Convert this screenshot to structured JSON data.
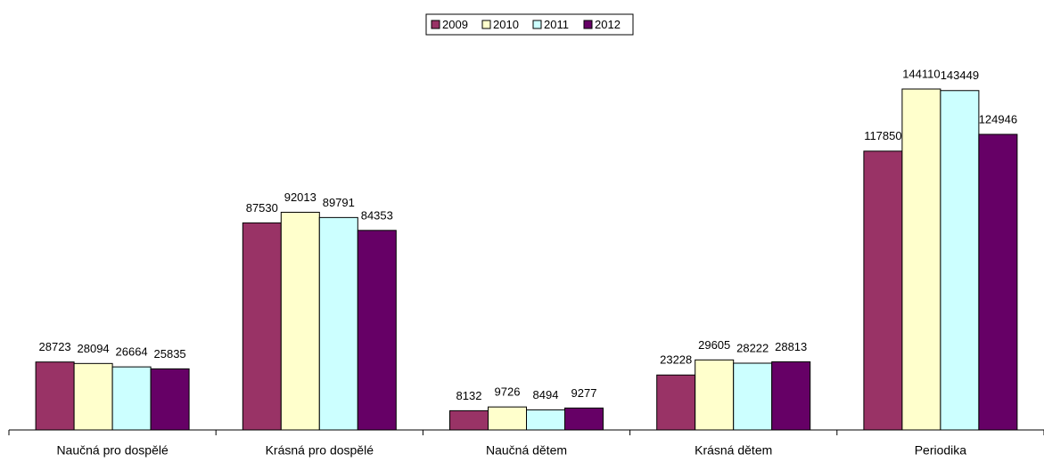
{
  "chart_data": {
    "type": "bar",
    "categories": [
      "Naučná pro dospělé",
      "Krásná pro dospělé",
      "Naučná dětem",
      "Krásná dětem",
      "Periodika"
    ],
    "series": [
      {
        "name": "2009",
        "color": "#993366",
        "values": [
          28723,
          87530,
          8132,
          23228,
          117850
        ]
      },
      {
        "name": "2010",
        "color": "#ffffcc",
        "values": [
          28094,
          92013,
          9726,
          29605,
          144110
        ]
      },
      {
        "name": "2011",
        "color": "#ccffff",
        "values": [
          26664,
          89791,
          8494,
          28222,
          143449
        ]
      },
      {
        "name": "2012",
        "color": "#660066",
        "values": [
          25835,
          84353,
          9277,
          28813,
          124946
        ]
      }
    ],
    "legend": "top"
  }
}
